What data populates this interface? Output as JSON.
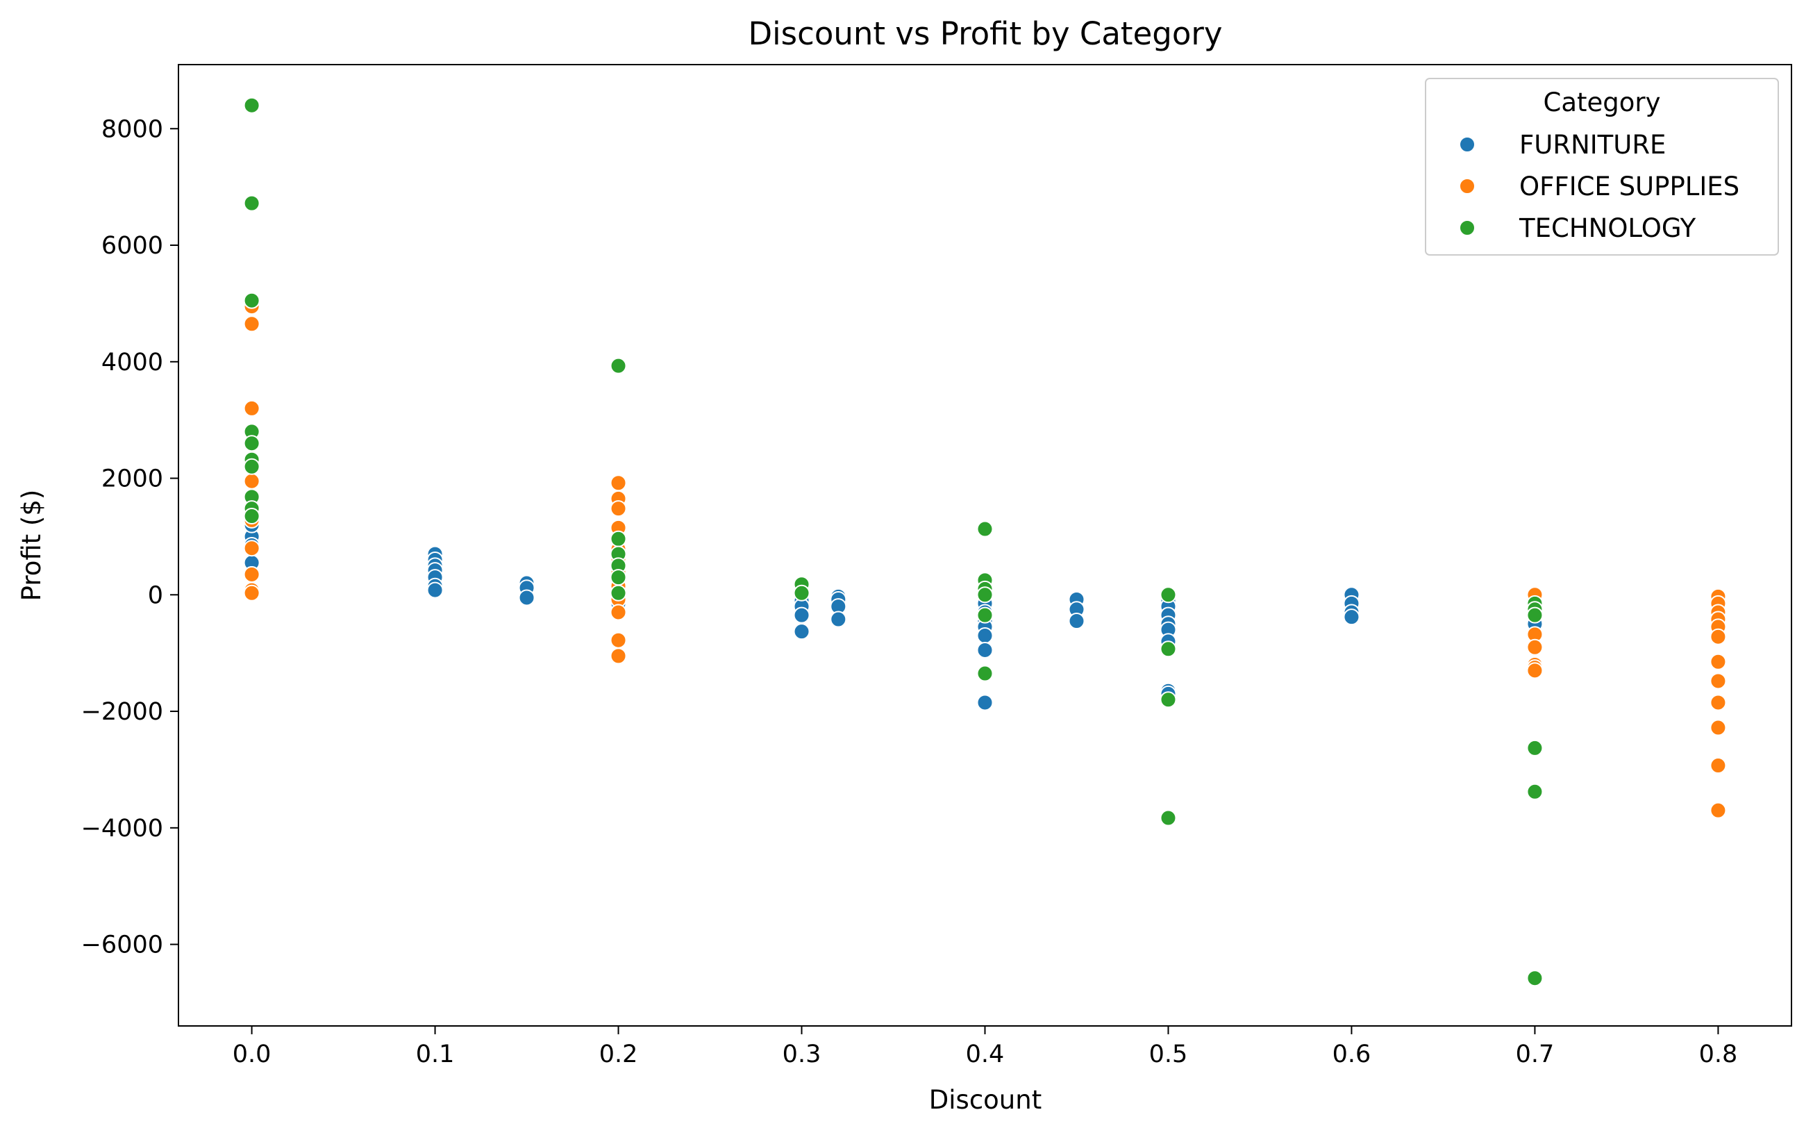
{
  "chart_data": {
    "type": "scatter",
    "title": "Discount vs Profit by Category",
    "xlabel": "Discount",
    "ylabel": "Profit ($)",
    "xlim": [
      -0.04,
      0.84
    ],
    "ylim": [
      -7400,
      9100
    ],
    "xticks": [
      0.0,
      0.1,
      0.2,
      0.3,
      0.4,
      0.5,
      0.6,
      0.7,
      0.8
    ],
    "xtick_labels": [
      "0.0",
      "0.1",
      "0.2",
      "0.3",
      "0.4",
      "0.5",
      "0.6",
      "0.7",
      "0.8"
    ],
    "yticks": [
      -6000,
      -4000,
      -2000,
      0,
      2000,
      4000,
      6000,
      8000
    ],
    "ytick_labels": [
      "−6000",
      "−4000",
      "−2000",
      "0",
      "2000",
      "4000",
      "6000",
      "8000"
    ],
    "grid": false,
    "legend": {
      "title": "Category",
      "placement": "top-right"
    },
    "series": [
      {
        "name": "FURNITURE",
        "color": "#1f77b4",
        "points": [
          [
            0.0,
            1000
          ],
          [
            0.0,
            850
          ],
          [
            0.0,
            550
          ],
          [
            0.0,
            350
          ],
          [
            0.0,
            100
          ],
          [
            0.0,
            1200
          ],
          [
            0.1,
            700
          ],
          [
            0.1,
            600
          ],
          [
            0.1,
            500
          ],
          [
            0.1,
            420
          ],
          [
            0.1,
            300
          ],
          [
            0.1,
            150
          ],
          [
            0.1,
            80
          ],
          [
            0.15,
            200
          ],
          [
            0.15,
            120
          ],
          [
            0.15,
            -50
          ],
          [
            0.2,
            500
          ],
          [
            0.2,
            200
          ],
          [
            0.2,
            -50
          ],
          [
            0.2,
            -150
          ],
          [
            0.3,
            50
          ],
          [
            0.3,
            -30
          ],
          [
            0.3,
            -100
          ],
          [
            0.3,
            -200
          ],
          [
            0.3,
            -350
          ],
          [
            0.3,
            -630
          ],
          [
            0.32,
            -30
          ],
          [
            0.32,
            -80
          ],
          [
            0.32,
            -200
          ],
          [
            0.32,
            -420
          ],
          [
            0.4,
            -150
          ],
          [
            0.4,
            -300
          ],
          [
            0.4,
            -450
          ],
          [
            0.4,
            -550
          ],
          [
            0.4,
            -700
          ],
          [
            0.4,
            -950
          ],
          [
            0.4,
            -1850
          ],
          [
            0.45,
            -80
          ],
          [
            0.45,
            -250
          ],
          [
            0.45,
            -450
          ],
          [
            0.5,
            -100
          ],
          [
            0.5,
            -200
          ],
          [
            0.5,
            -350
          ],
          [
            0.5,
            -500
          ],
          [
            0.5,
            -600
          ],
          [
            0.5,
            -800
          ],
          [
            0.5,
            -1650
          ],
          [
            0.5,
            -1700
          ],
          [
            0.6,
            0
          ],
          [
            0.6,
            -150
          ],
          [
            0.6,
            -300
          ],
          [
            0.6,
            -380
          ],
          [
            0.7,
            -400
          ],
          [
            0.7,
            -500
          ]
        ]
      },
      {
        "name": "OFFICE SUPPLIES",
        "color": "#ff7f0e",
        "points": [
          [
            0.0,
            4950
          ],
          [
            0.0,
            4650
          ],
          [
            0.0,
            3200
          ],
          [
            0.0,
            1950
          ],
          [
            0.0,
            1500
          ],
          [
            0.0,
            1280
          ],
          [
            0.0,
            800
          ],
          [
            0.0,
            350
          ],
          [
            0.0,
            80
          ],
          [
            0.0,
            30
          ],
          [
            0.2,
            1920
          ],
          [
            0.2,
            1650
          ],
          [
            0.2,
            1480
          ],
          [
            0.2,
            1150
          ],
          [
            0.2,
            950
          ],
          [
            0.2,
            780
          ],
          [
            0.2,
            620
          ],
          [
            0.2,
            380
          ],
          [
            0.2,
            150
          ],
          [
            0.2,
            -80
          ],
          [
            0.2,
            -300
          ],
          [
            0.2,
            -780
          ],
          [
            0.2,
            -1050
          ],
          [
            0.7,
            0
          ],
          [
            0.7,
            -680
          ],
          [
            0.7,
            -900
          ],
          [
            0.7,
            -1200
          ],
          [
            0.7,
            -1250
          ],
          [
            0.7,
            -1300
          ],
          [
            0.8,
            -30
          ],
          [
            0.8,
            -150
          ],
          [
            0.8,
            -300
          ],
          [
            0.8,
            -420
          ],
          [
            0.8,
            -550
          ],
          [
            0.8,
            -720
          ],
          [
            0.8,
            -1150
          ],
          [
            0.8,
            -1480
          ],
          [
            0.8,
            -1850
          ],
          [
            0.8,
            -2280
          ],
          [
            0.8,
            -2930
          ],
          [
            0.8,
            -3700
          ]
        ]
      },
      {
        "name": "TECHNOLOGY",
        "color": "#2ca02c",
        "points": [
          [
            0.0,
            8400
          ],
          [
            0.0,
            6720
          ],
          [
            0.0,
            5050
          ],
          [
            0.0,
            2800
          ],
          [
            0.0,
            2600
          ],
          [
            0.0,
            2320
          ],
          [
            0.0,
            2200
          ],
          [
            0.0,
            1680
          ],
          [
            0.0,
            1480
          ],
          [
            0.0,
            1350
          ],
          [
            0.2,
            3930
          ],
          [
            0.2,
            960
          ],
          [
            0.2,
            700
          ],
          [
            0.2,
            500
          ],
          [
            0.2,
            300
          ],
          [
            0.2,
            30
          ],
          [
            0.3,
            180
          ],
          [
            0.3,
            30
          ],
          [
            0.4,
            1130
          ],
          [
            0.4,
            250
          ],
          [
            0.4,
            100
          ],
          [
            0.4,
            0
          ],
          [
            0.4,
            -350
          ],
          [
            0.4,
            -1350
          ],
          [
            0.5,
            0
          ],
          [
            0.5,
            -930
          ],
          [
            0.5,
            -1800
          ],
          [
            0.5,
            -3830
          ],
          [
            0.7,
            -150
          ],
          [
            0.7,
            -250
          ],
          [
            0.7,
            -350
          ],
          [
            0.7,
            -2630
          ],
          [
            0.7,
            -3380
          ],
          [
            0.7,
            -6580
          ]
        ]
      }
    ]
  }
}
